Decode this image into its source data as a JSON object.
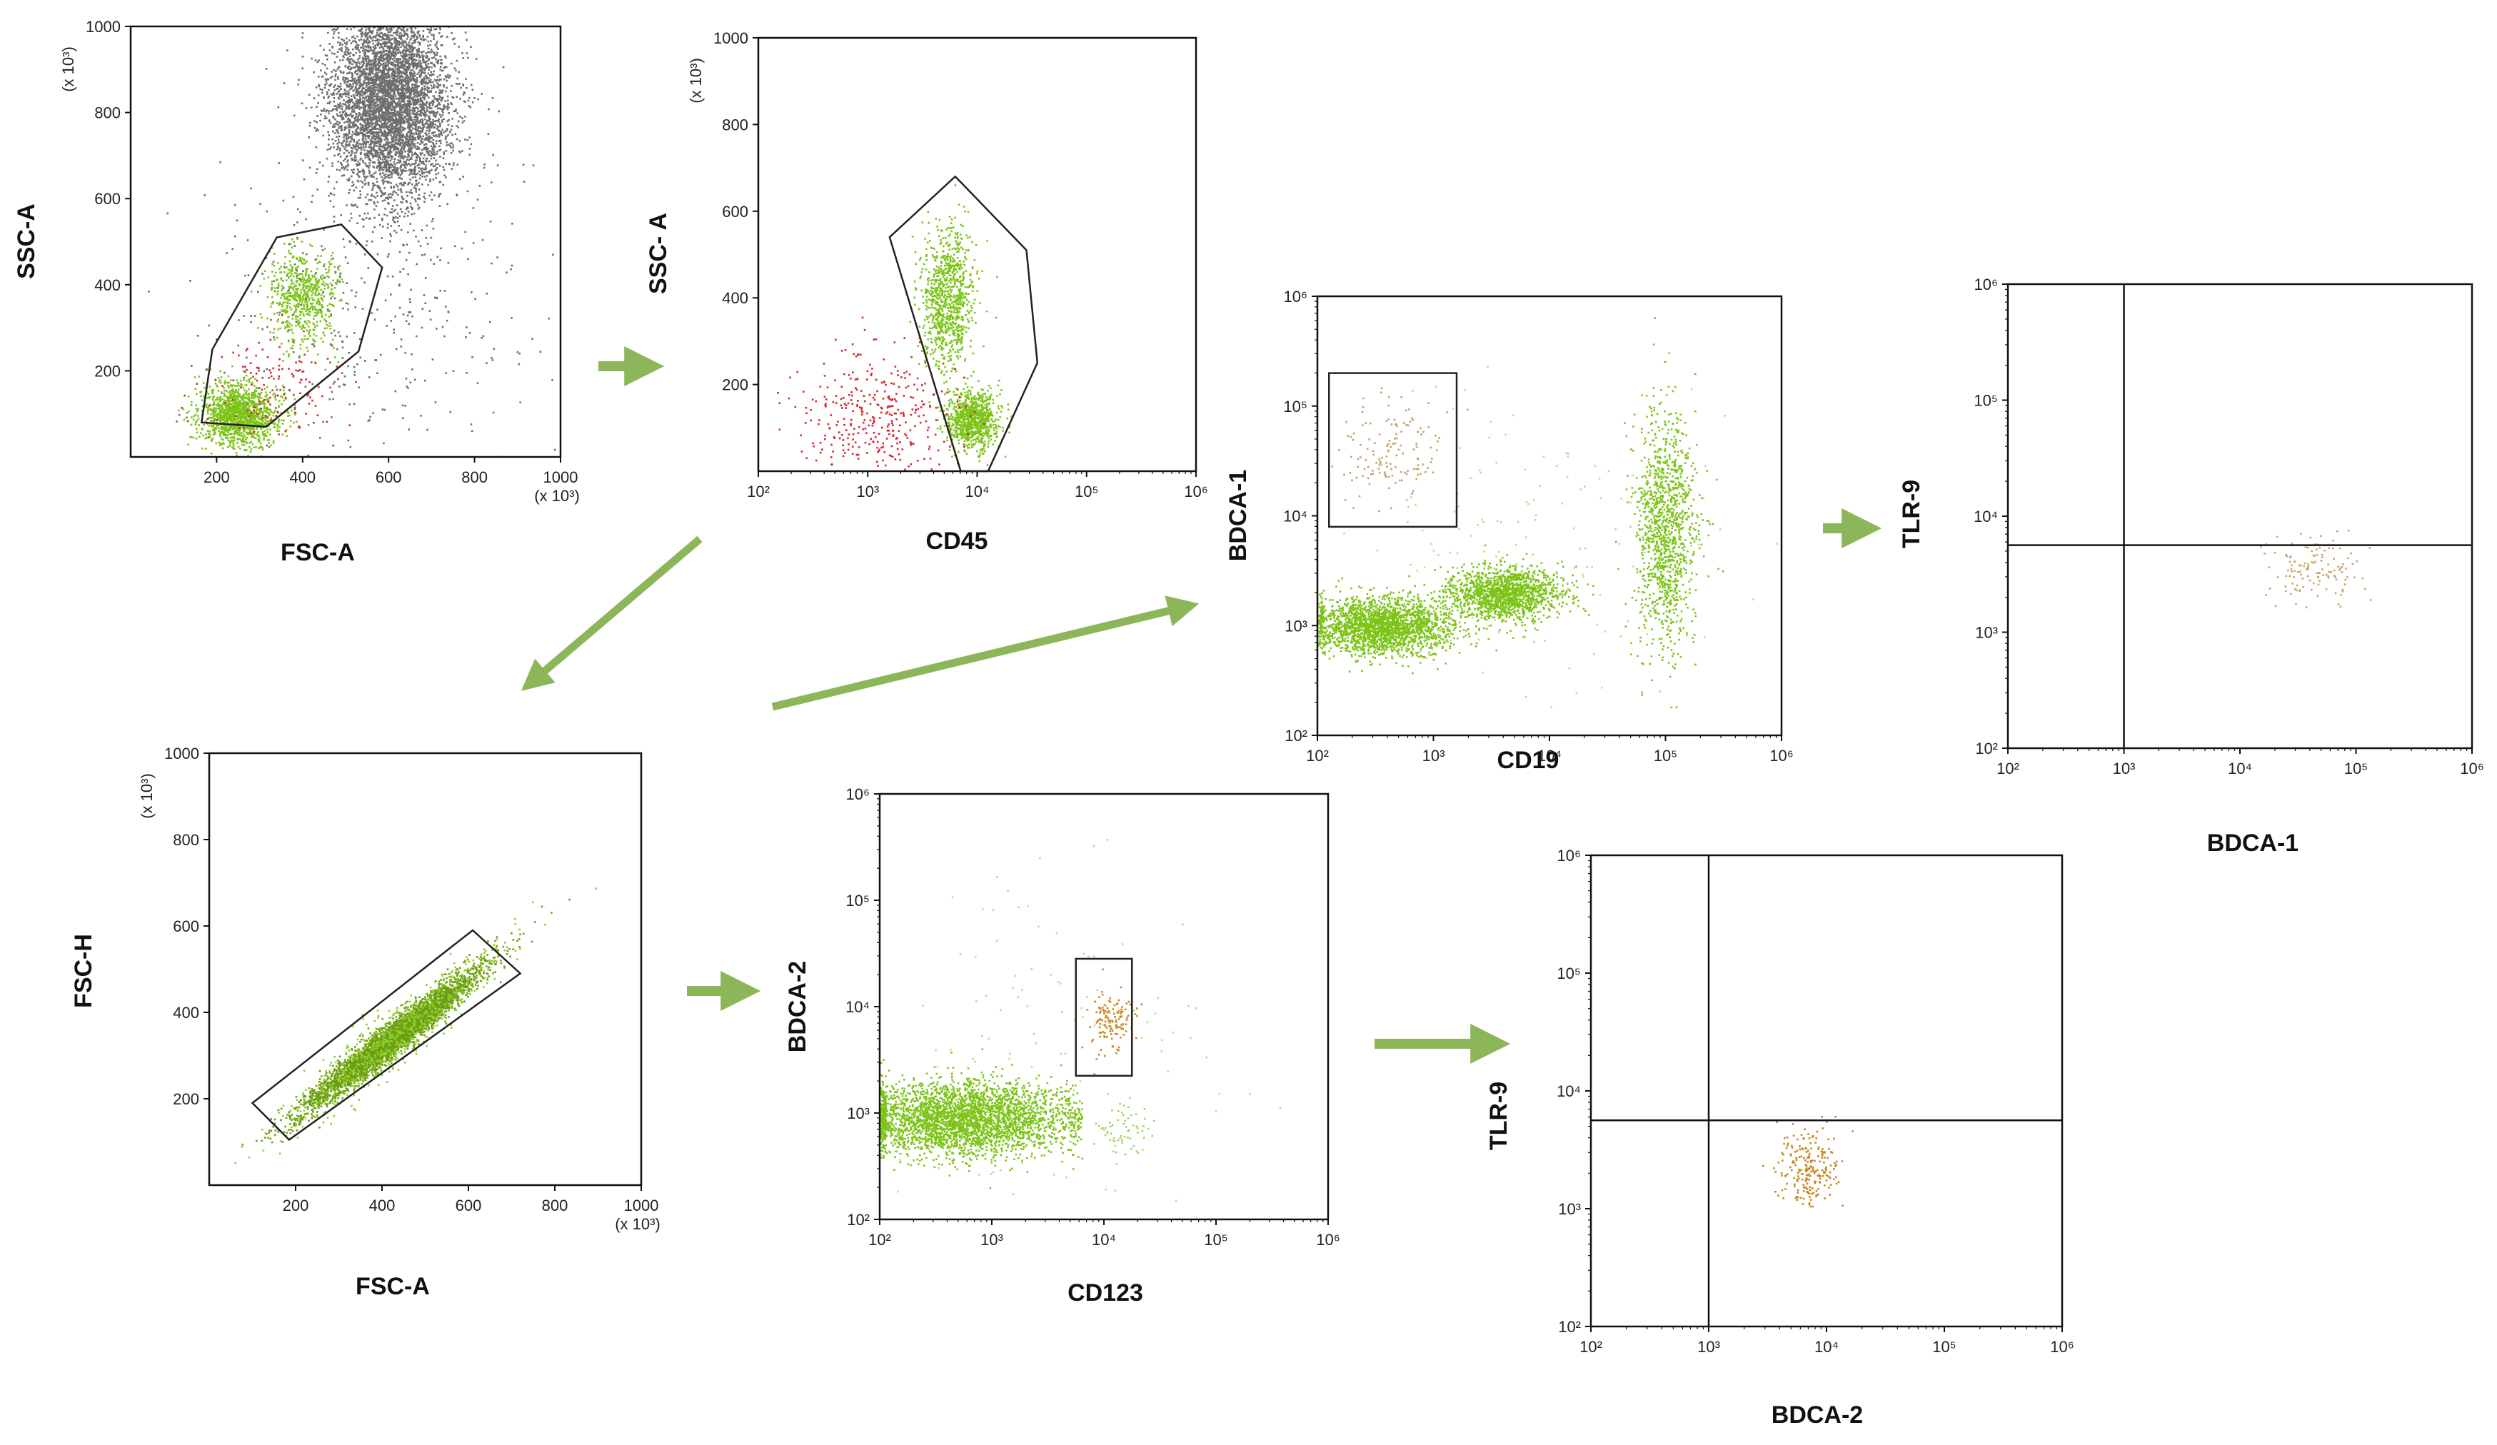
{
  "chart_data": [
    {
      "id": "p1",
      "type": "scatter",
      "xlabel": "FSC-A",
      "ylabel": "SSC-A",
      "xscale": "linear",
      "yscale": "linear",
      "xlim": [
        0,
        1000
      ],
      "ylim": [
        0,
        1000
      ],
      "xticks": [
        "200",
        "400",
        "600",
        "800",
        "1000"
      ],
      "yticks": [
        "200",
        "400",
        "600",
        "800",
        "1000"
      ],
      "xunit": "(x 10³)",
      "yunit": "(x 10³)",
      "gate": {
        "shape": "polygon",
        "vertices": [
          [
            165,
            80
          ],
          [
            315,
            70
          ],
          [
            530,
            245
          ],
          [
            585,
            440
          ],
          [
            490,
            540
          ],
          [
            340,
            510
          ],
          [
            190,
            250
          ]
        ]
      },
      "populations": [
        {
          "color": "#6e6e6e",
          "count": 5200,
          "x_mean": 600,
          "x_sd": 70,
          "y_mean": 830,
          "y_sd": 110
        },
        {
          "color": "#7cc417",
          "count": 1400,
          "x_mean": 250,
          "x_sd": 45,
          "y_mean": 100,
          "y_sd": 35
        },
        {
          "color": "#7cc417",
          "count": 650,
          "x_mean": 400,
          "x_sd": 40,
          "y_mean": 370,
          "y_sd": 55
        },
        {
          "color": "#d6262e",
          "count": 140,
          "x_mean": 320,
          "x_sd": 80,
          "y_mean": 150,
          "y_sd": 70
        },
        {
          "color": "#6e6e6e",
          "count": 400,
          "x_mean": 550,
          "x_sd": 200,
          "y_mean": 350,
          "y_sd": 200
        }
      ]
    },
    {
      "id": "p2",
      "type": "scatter",
      "xlabel": "CD45",
      "ylabel": "SSC- A",
      "xscale": "log",
      "yscale": "linear",
      "xlim": [
        2,
        6
      ],
      "ylim": [
        0,
        1000
      ],
      "xticks": [
        "10²",
        "10³",
        "10⁴",
        "10⁵",
        "10⁶"
      ],
      "yticks": [
        "200",
        "400",
        "600",
        "800",
        "1000"
      ],
      "yunit": "(x 10³)",
      "gate": {
        "shape": "polygon",
        "vertices": [
          [
            3.2,
            540
          ],
          [
            3.8,
            680
          ],
          [
            4.45,
            510
          ],
          [
            4.55,
            250
          ],
          [
            4.1,
            0
          ],
          [
            3.85,
            0
          ]
        ]
      },
      "populations": [
        {
          "color": "#7cc417",
          "count": 900,
          "x_mean": 3.72,
          "x_sd": 0.12,
          "y_mean": 400,
          "y_sd": 80
        },
        {
          "color": "#7cc417",
          "count": 900,
          "x_mean": 3.95,
          "x_sd": 0.12,
          "y_mean": 120,
          "y_sd": 35
        },
        {
          "color": "#d6262e",
          "count": 360,
          "x_mean": 3.1,
          "x_sd": 0.35,
          "y_mean": 130,
          "y_sd": 75
        }
      ]
    },
    {
      "id": "p3",
      "type": "scatter",
      "xlabel": "FSC-A",
      "ylabel": "FSC-H",
      "xscale": "linear",
      "yscale": "linear",
      "xlim": [
        0,
        1000
      ],
      "ylim": [
        0,
        1000
      ],
      "xticks": [
        "200",
        "400",
        "600",
        "800",
        "1000"
      ],
      "yticks": [
        "200",
        "400",
        "600",
        "800",
        "1000"
      ],
      "xunit": "(x 10³)",
      "yunit": "(x 10³)",
      "gate": {
        "shape": "polygon",
        "vertices": [
          [
            100,
            190
          ],
          [
            610,
            590
          ],
          [
            720,
            490
          ],
          [
            185,
            105
          ]
        ]
      },
      "populations": [
        {
          "color": "#6c9e12",
          "count": 4000,
          "diagonal": true,
          "x_mean": 420,
          "x_sd": 100,
          "slope": 0.78,
          "intercept": 10,
          "spread": 20
        },
        {
          "color": "#8fcf2a",
          "count": 700,
          "diagonal": true,
          "x_mean": 430,
          "x_sd": 120,
          "slope": 0.78,
          "intercept": 10,
          "spread": 35
        }
      ]
    },
    {
      "id": "p4",
      "type": "scatter",
      "xlabel": "CD123",
      "ylabel": "BDCA-2",
      "xscale": "log",
      "yscale": "log",
      "xlim": [
        2,
        6
      ],
      "ylim": [
        2,
        6
      ],
      "xticks": [
        "10²",
        "10³",
        "10⁴",
        "10⁵",
        "10⁶"
      ],
      "yticks": [
        "10²",
        "10³",
        "10⁴",
        "10⁵",
        "10⁶"
      ],
      "gate": {
        "shape": "rect",
        "x": [
          3.75,
          4.25
        ],
        "y": [
          3.35,
          4.45
        ]
      },
      "populations": [
        {
          "color": "#7cc417",
          "count": 3200,
          "x_mean": 2.75,
          "x_sd": 0.5,
          "y_mean": 2.95,
          "y_sd": 0.17,
          "x_min": 2.0,
          "x_max": 3.8
        },
        {
          "color": "#c8861e",
          "count": 130,
          "x_mean": 4.05,
          "x_sd": 0.1,
          "y_mean": 3.9,
          "y_sd": 0.16
        },
        {
          "color": "#a3d65a",
          "count": 60,
          "x_mean": 4.2,
          "x_sd": 0.15,
          "y_mean": 2.85,
          "y_sd": 0.12
        },
        {
          "color": "#b9dd8a",
          "count": 120,
          "x_mean": 3.6,
          "x_sd": 0.8,
          "y_mean": 3.8,
          "y_sd": 0.9
        }
      ]
    },
    {
      "id": "p5",
      "type": "scatter",
      "xlabel": "CD19",
      "ylabel": "BDCA-1",
      "xscale": "log",
      "yscale": "log",
      "xlim": [
        2,
        6
      ],
      "ylim": [
        2,
        6
      ],
      "xticks": [
        "10²",
        "10³",
        "10⁴",
        "10⁵",
        "10⁶"
      ],
      "yticks": [
        "10²",
        "10³",
        "10⁴",
        "10⁵",
        "10⁶"
      ],
      "gate": {
        "shape": "rect",
        "x": [
          2.1,
          3.2
        ],
        "y": [
          3.9,
          5.3
        ]
      },
      "populations": [
        {
          "color": "#7cc417",
          "count": 2200,
          "x_mean": 2.55,
          "x_sd": 0.3,
          "y_mean": 3.0,
          "y_sd": 0.13,
          "x_min": 2.0
        },
        {
          "color": "#7cc417",
          "count": 1500,
          "x_mean": 3.6,
          "x_sd": 0.25,
          "y_mean": 3.3,
          "y_sd": 0.12
        },
        {
          "color": "#7cc417",
          "count": 1200,
          "x_mean": 5.0,
          "x_sd": 0.13,
          "y_mean": 3.9,
          "y_sd": 0.55
        },
        {
          "color": "#bfa26a",
          "count": 140,
          "x_mean": 2.6,
          "x_sd": 0.22,
          "y_mean": 4.6,
          "y_sd": 0.25
        },
        {
          "color": "#b9dd8a",
          "count": 150,
          "x_mean": 3.8,
          "x_sd": 0.9,
          "y_mean": 3.8,
          "y_sd": 0.7
        }
      ]
    },
    {
      "id": "p6",
      "type": "scatter",
      "xlabel": "BDCA-1",
      "ylabel": "TLR-9",
      "xscale": "log",
      "yscale": "log",
      "xlim": [
        2,
        6
      ],
      "ylim": [
        2,
        6
      ],
      "xticks": [
        "10²",
        "10³",
        "10⁴",
        "10⁵",
        "10⁶"
      ],
      "yticks": [
        "10²",
        "10³",
        "10⁴",
        "10⁵",
        "10⁶"
      ],
      "quadrant": {
        "x": 3.0,
        "y": 3.75
      },
      "populations": [
        {
          "color": "#c9a467",
          "count": 130,
          "x_mean": 4.65,
          "x_sd": 0.2,
          "y_mean": 3.55,
          "y_sd": 0.17
        }
      ]
    },
    {
      "id": "p7",
      "type": "scatter",
      "xlabel": "BDCA-2",
      "ylabel": "TLR-9",
      "xscale": "log",
      "yscale": "log",
      "xlim": [
        2,
        6
      ],
      "ylim": [
        2,
        6
      ],
      "xticks": [
        "10²",
        "10³",
        "10⁴",
        "10⁵",
        "10⁶"
      ],
      "yticks": [
        "10²",
        "10³",
        "10⁴",
        "10⁵",
        "10⁶"
      ],
      "quadrant": {
        "x": 3.0,
        "y": 3.75
      },
      "populations": [
        {
          "color": "#c8861e",
          "count": 220,
          "x_mean": 3.85,
          "x_sd": 0.14,
          "y_mean": 3.35,
          "y_sd": 0.17
        }
      ]
    }
  ],
  "arrow_color": "#8db65a"
}
